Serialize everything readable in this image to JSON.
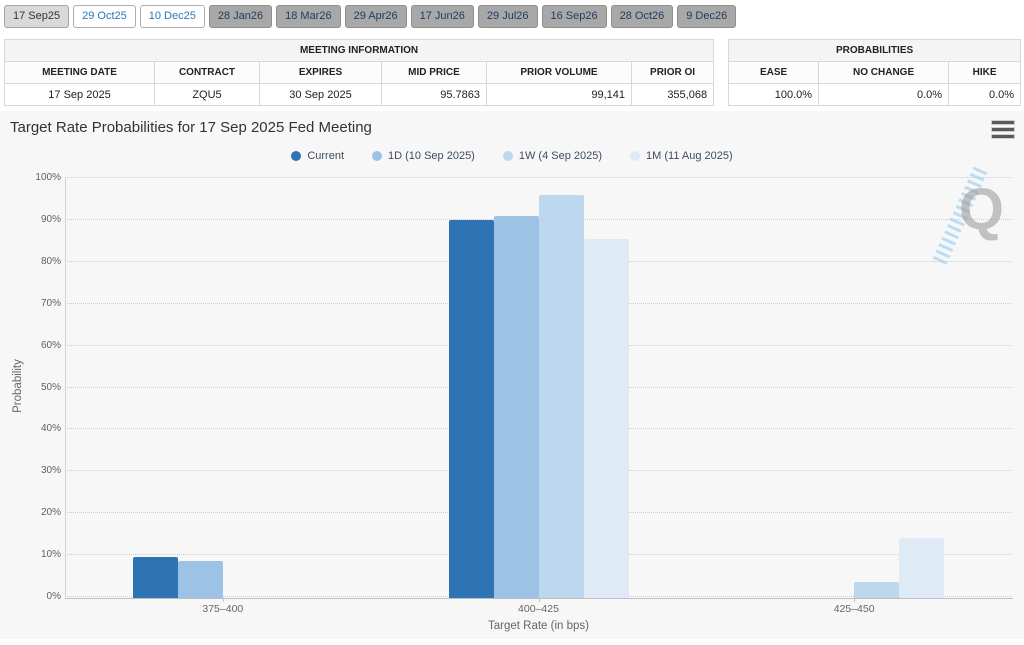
{
  "tab_bar": {
    "tabs": [
      {
        "label": "17 Sep25",
        "variant": "active"
      },
      {
        "label": "29 Oct25",
        "variant": "white"
      },
      {
        "label": "10 Dec25",
        "variant": "white"
      },
      {
        "label": "28 Jan26",
        "variant": "gray"
      },
      {
        "label": "18 Mar26",
        "variant": "gray"
      },
      {
        "label": "29 Apr26",
        "variant": "gray"
      },
      {
        "label": "17 Jun26",
        "variant": "gray"
      },
      {
        "label": "29 Jul26",
        "variant": "gray"
      },
      {
        "label": "16 Sep26",
        "variant": "gray"
      },
      {
        "label": "28 Oct26",
        "variant": "gray"
      },
      {
        "label": "9 Dec26",
        "variant": "gray"
      }
    ]
  },
  "meeting_info": {
    "title": "MEETING INFORMATION",
    "columns": [
      "MEETING DATE",
      "CONTRACT",
      "EXPIRES",
      "MID PRICE",
      "PRIOR VOLUME",
      "PRIOR OI"
    ],
    "row": [
      "17 Sep 2025",
      "ZQU5",
      "30 Sep 2025",
      "95.7863",
      "99,141",
      "355,068"
    ]
  },
  "probabilities": {
    "title": "PROBABILITIES",
    "columns": [
      "EASE",
      "NO CHANGE",
      "HIKE"
    ],
    "row": [
      "100.0%",
      "0.0%",
      "0.0%"
    ]
  },
  "chart": {
    "title": "Target Rate Probabilities for 17 Sep 2025 Fed Meeting",
    "menu_icon": "hamburger-menu-icon",
    "watermark_letter": "Q"
  },
  "chart_data": {
    "type": "bar",
    "title": "Target Rate Probabilities for 17 Sep 2025 Fed Meeting",
    "categories": [
      "375-400",
      "400-425",
      "425-450"
    ],
    "series": [
      {
        "name": "Current",
        "color": "#2e74b5",
        "values": [
          9.9,
          90.1,
          0
        ]
      },
      {
        "name": "1D (10 Sep 2025)",
        "color": "#9cc3e5",
        "values": [
          8.9,
          91.1,
          0
        ]
      },
      {
        "name": "1W (4 Sep 2025)",
        "color": "#bdd7ee",
        "values": [
          0,
          96.2,
          3.8
        ]
      },
      {
        "name": "1M (11 Aug 2025)",
        "color": "#deebf6",
        "values": [
          0,
          85.7,
          14.3
        ]
      }
    ],
    "xlabel": "Target Rate (in bps)",
    "ylabel": "Probability",
    "ylim": [
      0,
      100
    ],
    "ytick_step": 10,
    "ytick_labels": [
      "0%",
      "10%",
      "20%",
      "30%",
      "40%",
      "50%",
      "60%",
      "70%",
      "80%",
      "90%",
      "100%"
    ],
    "grid": "dotted-horizontal",
    "legend_position": "top-center"
  }
}
